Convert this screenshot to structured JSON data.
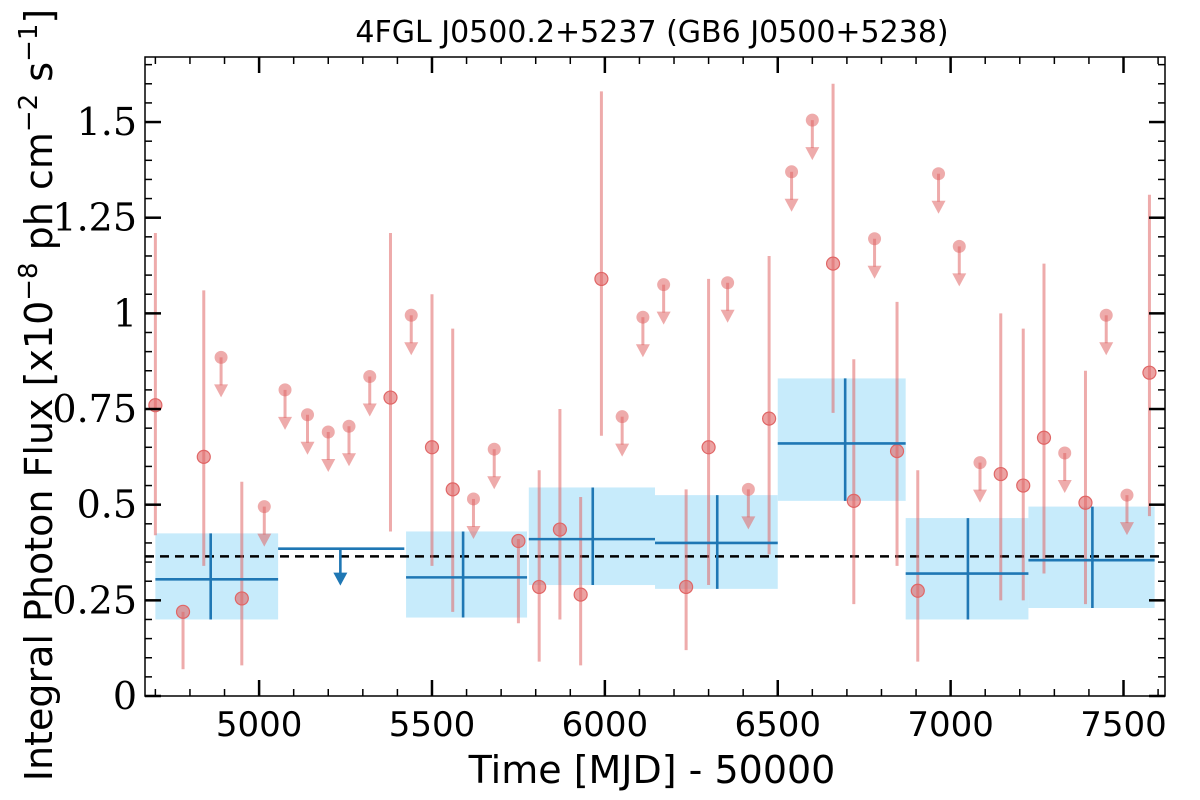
{
  "chart_data": {
    "type": "scatter",
    "title": "4FGL J0500.2+5237 (GB6 J0500+5238)",
    "xlabel": "Time [MJD] - 50000",
    "ylabel": "Integral Photon Flux [x10",
    "ylabel_exp1": "−8",
    "ylabel_mid": " ph cm",
    "ylabel_exp2": "−2",
    "ylabel_mid2": " s",
    "ylabel_exp3": "−1",
    "ylabel_end": "]",
    "xlim": [
      4670,
      7620
    ],
    "ylim": [
      0,
      1.67
    ],
    "x_ticks": [
      5000,
      5500,
      6000,
      6500,
      7000,
      7500
    ],
    "x_tick_labels": [
      "5000",
      "5500",
      "6000",
      "6500",
      "7000",
      "7500"
    ],
    "y_ticks": [
      0,
      0.25,
      0.5,
      0.75,
      1,
      1.25,
      1.5
    ],
    "y_tick_labels": [
      "0",
      "0.25",
      "0.5",
      "0.75",
      "1",
      "1.25",
      "1.5"
    ],
    "mean_flux": 0.365,
    "colors": {
      "monthly": "#e06666",
      "yearly": "#1f77b4",
      "band": "#c7ebfb",
      "mean_line": "#000000"
    },
    "series": [
      {
        "points": [
          {
            "x": 4700,
            "y": 0.76,
            "lo": 0.42,
            "hi": 1.21
          },
          {
            "x": 4780,
            "y": 0.22,
            "lo": 0.07,
            "hi": 0.22
          },
          {
            "x": 4840,
            "y": 0.625,
            "lo": 0.34,
            "hi": 1.06
          },
          {
            "x": 4950,
            "y": 0.255,
            "lo": 0.08,
            "hi": 0.56
          },
          {
            "x": 5380,
            "y": 0.78,
            "lo": 0.43,
            "hi": 1.21
          },
          {
            "x": 5500,
            "y": 0.65,
            "lo": 0.34,
            "hi": 1.05
          },
          {
            "x": 5560,
            "y": 0.54,
            "lo": 0.22,
            "hi": 0.96
          },
          {
            "x": 5750,
            "y": 0.405,
            "lo": 0.19,
            "hi": 0.41
          },
          {
            "x": 5810,
            "y": 0.285,
            "lo": 0.09,
            "hi": 0.59
          },
          {
            "x": 5870,
            "y": 0.435,
            "lo": 0.2,
            "hi": 0.75
          },
          {
            "x": 5930,
            "y": 0.265,
            "lo": 0.08,
            "hi": 0.52
          },
          {
            "x": 5990,
            "y": 1.09,
            "lo": 0.68,
            "hi": 1.58
          },
          {
            "x": 6235,
            "y": 0.285,
            "lo": 0.12,
            "hi": 0.54
          },
          {
            "x": 6300,
            "y": 0.65,
            "lo": 0.29,
            "hi": 1.09
          },
          {
            "x": 6475,
            "y": 0.725,
            "lo": 0.37,
            "hi": 1.15
          },
          {
            "x": 6660,
            "y": 1.13,
            "lo": 0.74,
            "hi": 1.6
          },
          {
            "x": 6720,
            "y": 0.51,
            "lo": 0.24,
            "hi": 0.88
          },
          {
            "x": 6845,
            "y": 0.64,
            "lo": 0.34,
            "hi": 1.03
          },
          {
            "x": 6905,
            "y": 0.275,
            "lo": 0.09,
            "hi": 0.59
          },
          {
            "x": 7145,
            "y": 0.58,
            "lo": 0.25,
            "hi": 1.0
          },
          {
            "x": 7210,
            "y": 0.55,
            "lo": 0.25,
            "hi": 0.96
          },
          {
            "x": 7270,
            "y": 0.675,
            "lo": 0.32,
            "hi": 1.13
          },
          {
            "x": 7390,
            "y": 0.505,
            "lo": 0.24,
            "hi": 0.85
          },
          {
            "x": 7575,
            "y": 0.845,
            "lo": 0.47,
            "hi": 1.31
          }
        ],
        "upper_limits": [
          {
            "x": 4890,
            "y": 0.885
          },
          {
            "x": 5015,
            "y": 0.495
          },
          {
            "x": 5075,
            "y": 0.8
          },
          {
            "x": 5140,
            "y": 0.735
          },
          {
            "x": 5200,
            "y": 0.69
          },
          {
            "x": 5260,
            "y": 0.705
          },
          {
            "x": 5320,
            "y": 0.835
          },
          {
            "x": 5440,
            "y": 0.995
          },
          {
            "x": 5620,
            "y": 0.515
          },
          {
            "x": 5680,
            "y": 0.645
          },
          {
            "x": 6110,
            "y": 0.99
          },
          {
            "x": 6170,
            "y": 1.075
          },
          {
            "x": 6050,
            "y": 0.73
          },
          {
            "x": 6355,
            "y": 1.08
          },
          {
            "x": 6415,
            "y": 0.54
          },
          {
            "x": 6540,
            "y": 1.37
          },
          {
            "x": 6600,
            "y": 1.505
          },
          {
            "x": 6780,
            "y": 1.195
          },
          {
            "x": 6965,
            "y": 1.365
          },
          {
            "x": 7025,
            "y": 1.175
          },
          {
            "x": 7085,
            "y": 0.61
          },
          {
            "x": 7330,
            "y": 0.635
          },
          {
            "x": 7450,
            "y": 0.995
          },
          {
            "x": 7510,
            "y": 0.525
          }
        ]
      },
      {
        "bins": [
          {
            "x0": 4700,
            "x1": 5055,
            "xc": 4860,
            "y": 0.305,
            "lo": 0.2,
            "hi": 0.425
          },
          {
            "x0": 5425,
            "x1": 5775,
            "xc": 5590,
            "y": 0.31,
            "lo": 0.205,
            "hi": 0.43
          },
          {
            "x0": 5780,
            "x1": 6145,
            "xc": 5965,
            "y": 0.41,
            "lo": 0.29,
            "hi": 0.545
          },
          {
            "x0": 6145,
            "x1": 6500,
            "xc": 6325,
            "y": 0.4,
            "lo": 0.28,
            "hi": 0.525
          },
          {
            "x0": 6500,
            "x1": 6870,
            "xc": 6695,
            "y": 0.66,
            "lo": 0.51,
            "hi": 0.83
          },
          {
            "x0": 6870,
            "x1": 7225,
            "xc": 7050,
            "y": 0.32,
            "lo": 0.2,
            "hi": 0.465
          },
          {
            "x0": 7225,
            "x1": 7590,
            "xc": 7410,
            "y": 0.355,
            "lo": 0.23,
            "hi": 0.495
          }
        ],
        "upper_limits": [
          {
            "x0": 5055,
            "x1": 5420,
            "xc": 5235,
            "y": 0.385
          }
        ]
      }
    ]
  }
}
